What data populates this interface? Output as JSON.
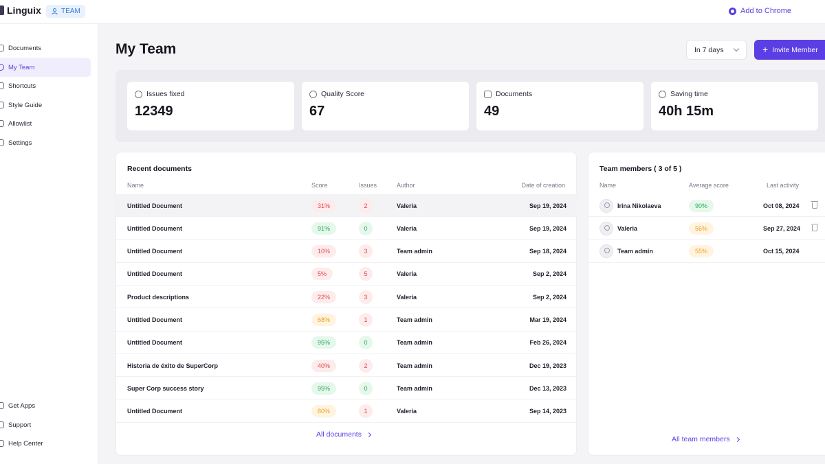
{
  "app": {
    "name": "Linguix",
    "badge": "TEAM",
    "add_chrome": "Add to Chrome"
  },
  "sidebar": {
    "top_items": [
      {
        "label": "Documents",
        "icon": "document-icon"
      },
      {
        "label": "My Team",
        "icon": "team-icon",
        "active": true
      },
      {
        "label": "Shortcuts",
        "icon": "shortcut-icon"
      },
      {
        "label": "Style Guide",
        "icon": "style-guide-icon"
      },
      {
        "label": "Allowlist",
        "icon": "allowlist-icon"
      },
      {
        "label": "Settings",
        "icon": "gear-icon"
      }
    ],
    "bottom_items": [
      {
        "label": "Get Apps",
        "icon": "apps-icon"
      },
      {
        "label": "Support",
        "icon": "support-icon"
      },
      {
        "label": "Help Center",
        "icon": "help-icon"
      }
    ]
  },
  "header": {
    "title": "My Team",
    "period": "In 7 days",
    "invite_label": "Invite Member"
  },
  "stats": [
    {
      "label": "Issues fixed",
      "value": "12349",
      "icon": "info-icon"
    },
    {
      "label": "Quality Score",
      "value": "67",
      "icon": "pie-icon"
    },
    {
      "label": "Documents",
      "value": "49",
      "icon": "document-icon"
    },
    {
      "label": "Saving time",
      "value": "40h 15m",
      "icon": "clock-icon"
    }
  ],
  "recent_documents": {
    "title": "Recent documents",
    "columns": {
      "name": "Name",
      "score": "Score",
      "issues": "Issues",
      "author": "Author",
      "date": "Date of creation"
    },
    "rows": [
      {
        "name": "Untitled Document",
        "score": "31%",
        "score_color": "red",
        "issues": "2",
        "issues_color": "red",
        "author": "Valeria",
        "date": "Sep 19, 2024"
      },
      {
        "name": "Untitled Document",
        "score": "91%",
        "score_color": "green",
        "issues": "0",
        "issues_color": "green",
        "author": "Valeria",
        "date": "Sep 19, 2024"
      },
      {
        "name": "Untitled Document",
        "score": "10%",
        "score_color": "red",
        "issues": "3",
        "issues_color": "red",
        "author": "Team admin",
        "date": "Sep 18, 2024"
      },
      {
        "name": "Untitled Document",
        "score": "5%",
        "score_color": "red",
        "issues": "5",
        "issues_color": "red",
        "author": "Valeria",
        "date": "Sep 2, 2024"
      },
      {
        "name": "Product descriptions",
        "score": "22%",
        "score_color": "red",
        "issues": "3",
        "issues_color": "red",
        "author": "Valeria",
        "date": "Sep 2, 2024"
      },
      {
        "name": "Untitled Document",
        "score": "68%",
        "score_color": "orange",
        "issues": "1",
        "issues_color": "red",
        "author": "Team admin",
        "date": "Mar 19, 2024"
      },
      {
        "name": "Untitled Document",
        "score": "95%",
        "score_color": "green",
        "issues": "0",
        "issues_color": "green",
        "author": "Team admin",
        "date": "Feb 26, 2024"
      },
      {
        "name": "Historia de éxito de SuperCorp",
        "score": "40%",
        "score_color": "red",
        "issues": "2",
        "issues_color": "red",
        "author": "Team admin",
        "date": "Dec 19, 2023"
      },
      {
        "name": "Super Corp success story",
        "score": "95%",
        "score_color": "green",
        "issues": "0",
        "issues_color": "green",
        "author": "Team admin",
        "date": "Dec 13, 2023"
      },
      {
        "name": "Untitled Document",
        "score": "80%",
        "score_color": "orange",
        "issues": "1",
        "issues_color": "red",
        "author": "Valeria",
        "date": "Sep 14, 2023"
      }
    ],
    "link": "All documents"
  },
  "team_members": {
    "title": "Team members ( 3 of 5 )",
    "columns": {
      "name": "Name",
      "avg": "Average score",
      "last": "Last activity"
    },
    "rows": [
      {
        "name": "Irina Nikolaeva",
        "score": "90%",
        "score_color": "green",
        "last": "Oct 08, 2024",
        "deletable": true
      },
      {
        "name": "Valeria",
        "score": "56%",
        "score_color": "orange",
        "last": "Sep 27, 2024",
        "deletable": true
      },
      {
        "name": "Team admin",
        "score": "55%",
        "score_color": "orange",
        "last": "Oct 15, 2024",
        "deletable": false
      }
    ],
    "link": "All team members"
  }
}
